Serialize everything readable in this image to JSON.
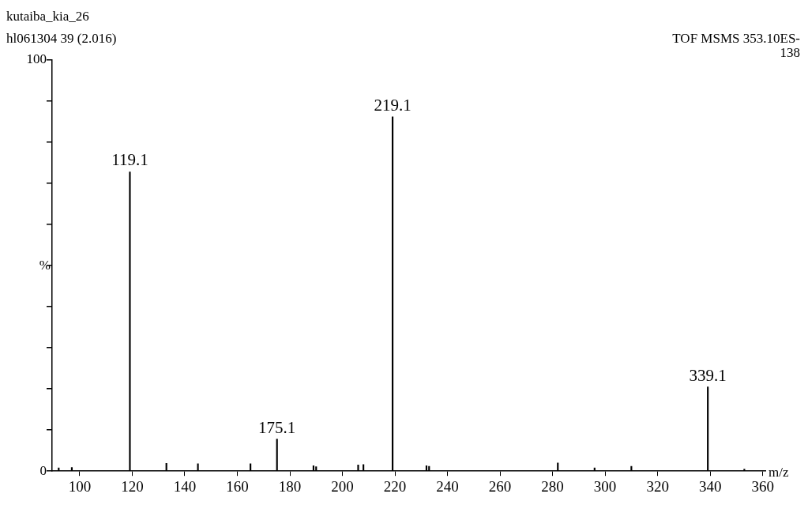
{
  "chart_data": {
    "type": "bar",
    "title": "kutaiba_kia_26",
    "subtitle": "hl061304 39 (2.016)",
    "xlabel": "m/z",
    "ylabel": "%",
    "x": [
      92,
      97,
      119.1,
      133,
      145,
      165,
      175.1,
      189,
      190,
      206,
      208,
      219.1,
      232,
      233,
      282,
      296,
      310,
      339.1,
      353
    ],
    "values": [
      0.8,
      0.9,
      72.8,
      1.9,
      1.8,
      1.8,
      7.8,
      1.3,
      1.1,
      1.5,
      1.6,
      86.2,
      1.3,
      1.2,
      2.0,
      0.8,
      1.2,
      20.5,
      0.5
    ],
    "color": "#000000",
    "xlim": [
      89.5,
      361
    ],
    "xticks": [
      100,
      120,
      140,
      160,
      180,
      200,
      220,
      240,
      260,
      280,
      300,
      320,
      340,
      360
    ],
    "ylim": [
      0,
      100
    ],
    "yticks": [
      0,
      {
        "value": 10,
        "label": null
      },
      {
        "value": 20,
        "label": null
      },
      {
        "value": 30,
        "label": null
      },
      {
        "value": 40,
        "label": null
      },
      {
        "value": 50,
        "label": null
      },
      {
        "value": 60,
        "label": null
      },
      {
        "value": 70,
        "label": null
      },
      {
        "value": 80,
        "label": null
      },
      {
        "value": 90,
        "label": null
      },
      100
    ],
    "grid": false,
    "legend": false,
    "annotations": [
      "TOF MSMS 353.10ES-",
      "138",
      {
        "text": "119.1",
        "x": 119.1,
        "y": 72.8
      },
      {
        "text": "175.1",
        "x": 175.1,
        "y": 7.8
      },
      {
        "text": "219.1",
        "x": 219.1,
        "y": 86.2
      },
      {
        "text": "339.1",
        "x": 339.1,
        "y": 20.5
      }
    ]
  }
}
